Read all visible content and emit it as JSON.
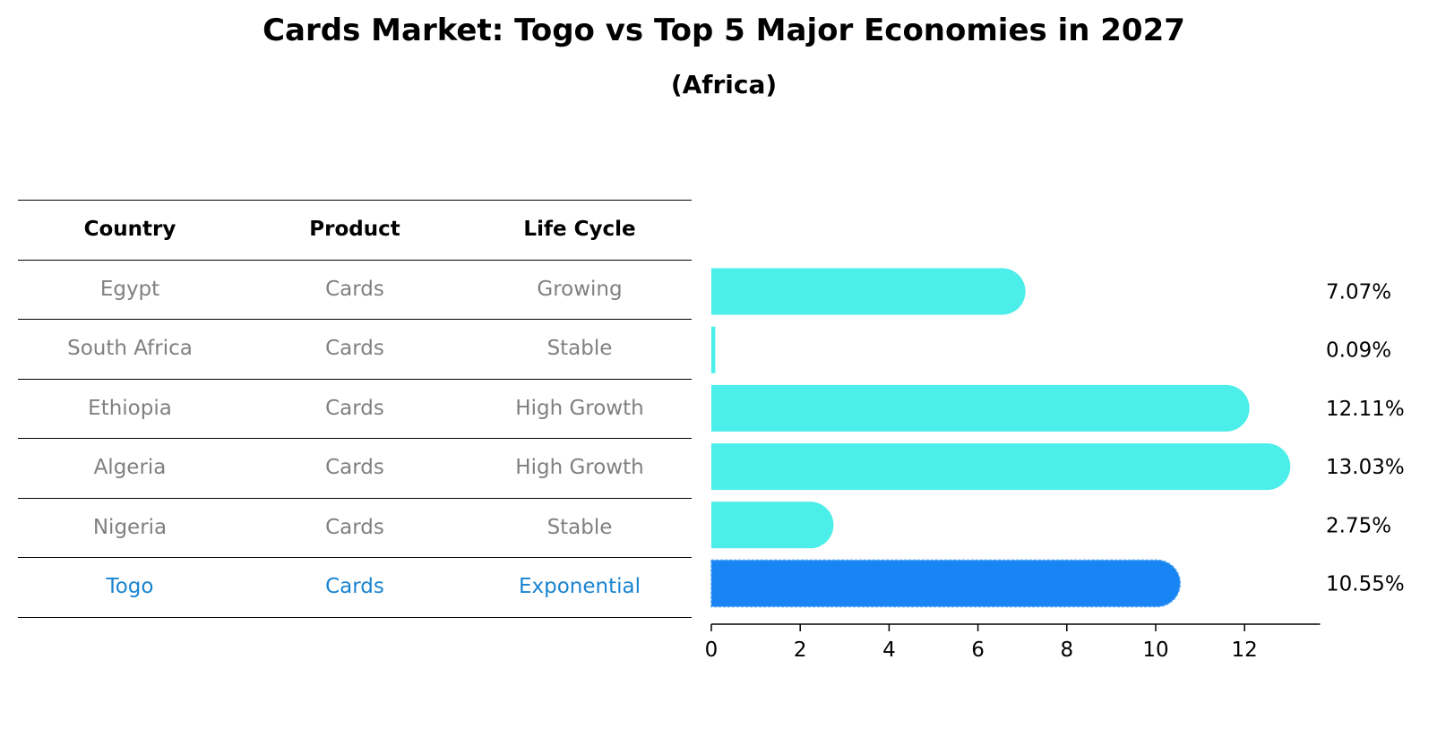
{
  "title": "Cards Market: Togo vs Top 5 Major Economies in 2027",
  "subtitle": "(Africa)",
  "table": {
    "headers": [
      "Country",
      "Product",
      "Life Cycle"
    ],
    "rows": [
      {
        "country": "Egypt",
        "product": "Cards",
        "life_cycle": "Growing",
        "highlight": false
      },
      {
        "country": "South Africa",
        "product": "Cards",
        "life_cycle": "Stable",
        "highlight": false
      },
      {
        "country": "Ethiopia",
        "product": "Cards",
        "life_cycle": "High Growth",
        "highlight": false
      },
      {
        "country": "Algeria",
        "product": "Cards",
        "life_cycle": "High Growth",
        "highlight": false
      },
      {
        "country": "Nigeria",
        "product": "Cards",
        "life_cycle": "Stable",
        "highlight": false
      },
      {
        "country": "Togo",
        "product": "Cards",
        "life_cycle": "Exponential",
        "highlight": true
      }
    ]
  },
  "colors": {
    "bar": "#4beee9",
    "highlight_bar": "#1984f3",
    "row_text": "#808080",
    "highlight_text": "#1984d1"
  },
  "chart_data": {
    "type": "bar",
    "orientation": "horizontal",
    "categories": [
      "Egypt",
      "South Africa",
      "Ethiopia",
      "Algeria",
      "Nigeria",
      "Togo"
    ],
    "values": [
      7.07,
      0.09,
      12.11,
      13.03,
      2.75,
      10.55
    ],
    "value_labels": [
      "7.07%",
      "0.09%",
      "12.11%",
      "13.03%",
      "2.75%",
      "10.55%"
    ],
    "highlight": "Togo",
    "xlim": [
      0,
      13.7
    ],
    "xticks": [
      0,
      2,
      4,
      6,
      8,
      10,
      12
    ],
    "xlabel": "",
    "ylabel": "",
    "grid": false
  }
}
